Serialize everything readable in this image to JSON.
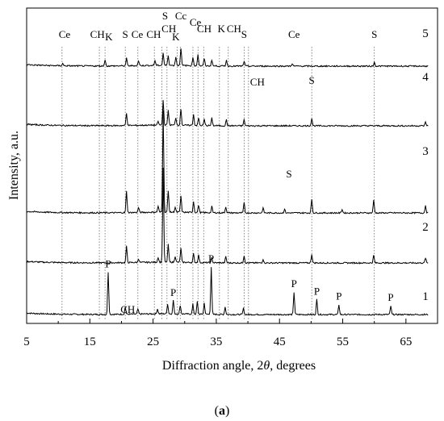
{
  "chart_data": {
    "type": "line",
    "xlabel_pre": "Diffraction angle, 2",
    "xlabel_theta": "θ",
    "xlabel_post": ", degrees",
    "ylabel": "Intensity, a.u.",
    "caption_open": "(",
    "caption_letter": "a",
    "caption_close": ")",
    "xlim": [
      5,
      70
    ],
    "xticks": [
      5,
      15,
      25,
      35,
      45,
      55,
      65
    ],
    "xtick_labels": [
      "5",
      "15",
      "25",
      "35",
      "45",
      "55",
      "65"
    ],
    "grid": false,
    "reference_lines_2theta": [
      10.6,
      16.5,
      17.4,
      20.6,
      22.6,
      25.2,
      26.4,
      27.2,
      28.8,
      29.3,
      31.3,
      32.1,
      33.0,
      35.5,
      36.9,
      39.4,
      40.1,
      50.1,
      60.0
    ],
    "series": [
      {
        "name": "1",
        "peaks": [
          {
            "two_theta": 17.9,
            "height": 34
          },
          {
            "two_theta": 20.6,
            "height": 6
          },
          {
            "two_theta": 22.6,
            "height": 4
          },
          {
            "two_theta": 25.7,
            "height": 4
          },
          {
            "two_theta": 27.3,
            "height": 8
          },
          {
            "two_theta": 28.2,
            "height": 11
          },
          {
            "two_theta": 29.3,
            "height": 7
          },
          {
            "two_theta": 31.3,
            "height": 8
          },
          {
            "two_theta": 32.0,
            "height": 10
          },
          {
            "two_theta": 33.1,
            "height": 9
          },
          {
            "two_theta": 34.2,
            "height": 38
          },
          {
            "two_theta": 36.4,
            "height": 6
          },
          {
            "two_theta": 39.3,
            "height": 5
          },
          {
            "two_theta": 47.3,
            "height": 18
          },
          {
            "two_theta": 50.9,
            "height": 12
          },
          {
            "two_theta": 54.4,
            "height": 8
          },
          {
            "two_theta": 62.6,
            "height": 7
          }
        ],
        "labels": [
          {
            "text": "P",
            "two_theta": 17.9
          },
          {
            "text": "CH",
            "two_theta": 21.0
          },
          {
            "text": "P",
            "two_theta": 28.2
          },
          {
            "text": "P",
            "two_theta": 34.2
          },
          {
            "text": "P",
            "two_theta": 47.3
          },
          {
            "text": "P",
            "two_theta": 50.9
          },
          {
            "text": "P",
            "two_theta": 54.4
          },
          {
            "text": "P",
            "two_theta": 62.6
          }
        ]
      },
      {
        "name": "2",
        "peaks": [
          {
            "two_theta": 20.8,
            "height": 13
          },
          {
            "two_theta": 22.7,
            "height": 3
          },
          {
            "two_theta": 25.8,
            "height": 4
          },
          {
            "two_theta": 26.6,
            "height": 75
          },
          {
            "two_theta": 27.4,
            "height": 14
          },
          {
            "two_theta": 28.5,
            "height": 5
          },
          {
            "two_theta": 29.4,
            "height": 11
          },
          {
            "two_theta": 31.4,
            "height": 7
          },
          {
            "two_theta": 32.2,
            "height": 6
          },
          {
            "two_theta": 34.3,
            "height": 4
          },
          {
            "two_theta": 36.5,
            "height": 5
          },
          {
            "two_theta": 39.4,
            "height": 6
          },
          {
            "two_theta": 42.4,
            "height": 3
          },
          {
            "two_theta": 50.1,
            "height": 7
          },
          {
            "two_theta": 59.9,
            "height": 6
          },
          {
            "two_theta": 68.1,
            "height": 4
          }
        ],
        "labels": []
      },
      {
        "name": "3",
        "peaks": [
          {
            "two_theta": 20.8,
            "height": 17
          },
          {
            "two_theta": 22.7,
            "height": 4
          },
          {
            "two_theta": 25.8,
            "height": 5
          },
          {
            "two_theta": 26.6,
            "height": 82
          },
          {
            "two_theta": 27.4,
            "height": 17
          },
          {
            "two_theta": 28.5,
            "height": 4
          },
          {
            "two_theta": 29.4,
            "height": 13
          },
          {
            "two_theta": 31.4,
            "height": 9
          },
          {
            "two_theta": 32.2,
            "height": 6
          },
          {
            "two_theta": 34.3,
            "height": 5
          },
          {
            "two_theta": 36.5,
            "height": 5
          },
          {
            "two_theta": 39.4,
            "height": 8
          },
          {
            "two_theta": 42.4,
            "height": 4
          },
          {
            "two_theta": 45.8,
            "height": 3
          },
          {
            "two_theta": 50.1,
            "height": 11
          },
          {
            "two_theta": 54.9,
            "height": 3
          },
          {
            "two_theta": 59.9,
            "height": 10
          },
          {
            "two_theta": 68.1,
            "height": 6
          }
        ],
        "labels": [
          {
            "text": "S",
            "two_theta": 46.5
          }
        ]
      },
      {
        "name": "4",
        "peaks": [
          {
            "two_theta": 20.8,
            "height": 10
          },
          {
            "two_theta": 25.8,
            "height": 3
          },
          {
            "two_theta": 26.6,
            "height": 20
          },
          {
            "two_theta": 27.4,
            "height": 12
          },
          {
            "two_theta": 28.6,
            "height": 6
          },
          {
            "two_theta": 29.4,
            "height": 13
          },
          {
            "two_theta": 31.4,
            "height": 9
          },
          {
            "two_theta": 32.2,
            "height": 6
          },
          {
            "two_theta": 33.1,
            "height": 5
          },
          {
            "two_theta": 34.3,
            "height": 6
          },
          {
            "two_theta": 36.6,
            "height": 5
          },
          {
            "two_theta": 39.4,
            "height": 5
          },
          {
            "two_theta": 50.1,
            "height": 6
          },
          {
            "two_theta": 68.1,
            "height": 3
          }
        ],
        "labels": [
          {
            "text": "CH",
            "two_theta": 41.5
          },
          {
            "text": "S",
            "two_theta": 50.1
          }
        ]
      },
      {
        "name": "5",
        "peaks": [
          {
            "two_theta": 10.7,
            "height": 2
          },
          {
            "two_theta": 17.4,
            "height": 5
          },
          {
            "two_theta": 20.8,
            "height": 6
          },
          {
            "two_theta": 22.7,
            "height": 4
          },
          {
            "two_theta": 25.3,
            "height": 4
          },
          {
            "two_theta": 26.6,
            "height": 10
          },
          {
            "two_theta": 27.4,
            "height": 8
          },
          {
            "two_theta": 28.6,
            "height": 7
          },
          {
            "two_theta": 29.4,
            "height": 14
          },
          {
            "two_theta": 31.3,
            "height": 7
          },
          {
            "two_theta": 32.1,
            "height": 9
          },
          {
            "two_theta": 33.1,
            "height": 6
          },
          {
            "two_theta": 34.3,
            "height": 5
          },
          {
            "two_theta": 36.6,
            "height": 5
          },
          {
            "two_theta": 39.4,
            "height": 4
          },
          {
            "two_theta": 47.0,
            "height": 2
          },
          {
            "two_theta": 60.0,
            "height": 3
          }
        ],
        "labels": [
          {
            "text": "Ce",
            "two_theta": 11.0
          },
          {
            "text": "CH",
            "two_theta": 16.2
          },
          {
            "text": "K",
            "two_theta": 18.0
          },
          {
            "text": "S",
            "two_theta": 20.6
          },
          {
            "text": "Ce",
            "two_theta": 22.5
          },
          {
            "text": "CH",
            "two_theta": 25.1
          },
          {
            "text": "S",
            "two_theta": 26.9
          },
          {
            "text": "CH",
            "two_theta": 27.5
          },
          {
            "text": "Cc",
            "two_theta": 29.4
          },
          {
            "text": "K",
            "two_theta": 28.6
          },
          {
            "text": "Ce",
            "two_theta": 31.7
          },
          {
            "text": "CH",
            "two_theta": 33.1
          },
          {
            "text": "K",
            "two_theta": 35.8
          },
          {
            "text": "CH",
            "two_theta": 37.8
          },
          {
            "text": "S",
            "two_theta": 39.4
          },
          {
            "text": "Ce",
            "two_theta": 47.3
          },
          {
            "text": "S",
            "two_theta": 60.0
          }
        ]
      }
    ]
  }
}
